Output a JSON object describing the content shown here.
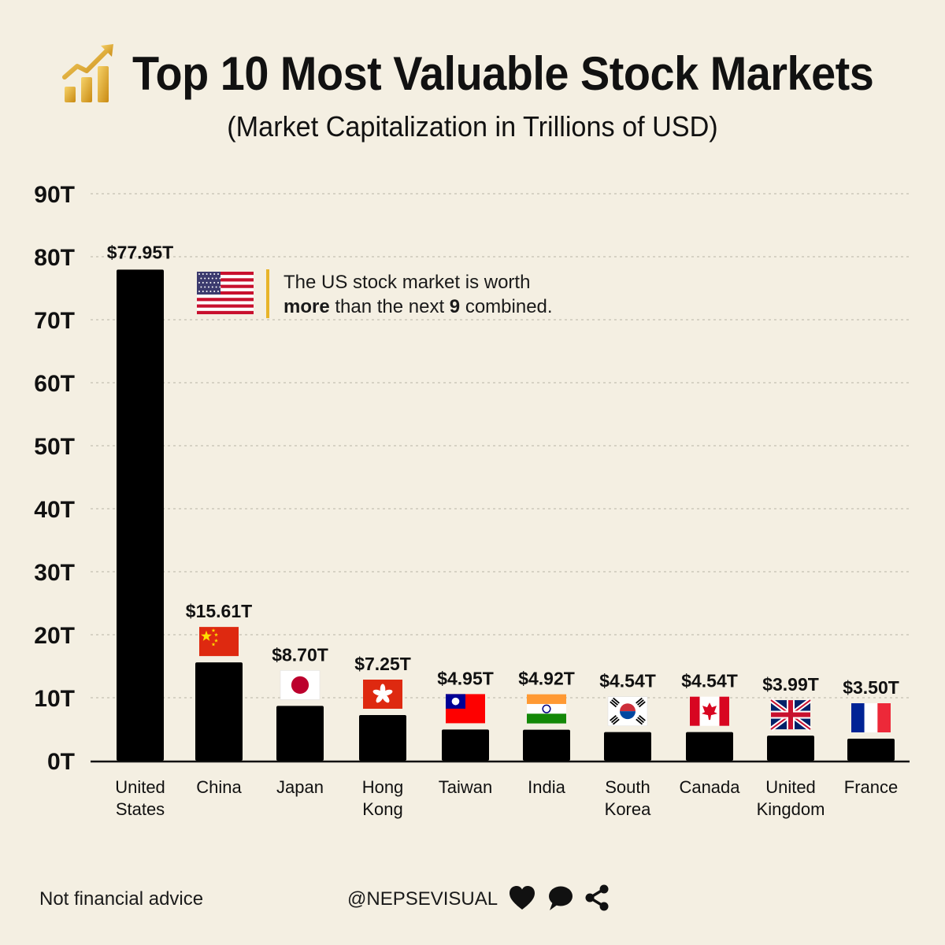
{
  "header": {
    "title": "Top 10 Most Valuable Stock Markets",
    "subtitle": "(Market Capitalization in Trillions of USD)",
    "icon": "rising-chart-icon"
  },
  "callout": {
    "line1": "The US stock market is worth",
    "line2_bold_1": "more",
    "line2_mid": " than the next ",
    "line2_bold_2": "9",
    "line2_end": " combined.",
    "flag": "us-flag",
    "accent_color": "#e8b42a"
  },
  "footer": {
    "disclaimer": "Not financial advice",
    "handle": "@NEPSEVISUAL",
    "icons": [
      "heart-icon",
      "comment-icon",
      "share-icon"
    ]
  },
  "chart_data": {
    "type": "bar",
    "y_ticks": [
      "0T",
      "10T",
      "20T",
      "30T",
      "40T",
      "50T",
      "60T",
      "70T",
      "80T",
      "90T"
    ],
    "ylim": [
      0,
      90
    ],
    "grid": true,
    "bar_color": "#000000",
    "categories": [
      {
        "label": [
          "United",
          "States"
        ],
        "value": 77.95,
        "data_label": "$77.95T",
        "flag": "us"
      },
      {
        "label": [
          "China"
        ],
        "value": 15.61,
        "data_label": "$15.61T",
        "flag": "cn"
      },
      {
        "label": [
          "Japan"
        ],
        "value": 8.7,
        "data_label": "$8.70T",
        "flag": "jp"
      },
      {
        "label": [
          "Hong",
          "Kong"
        ],
        "value": 7.25,
        "data_label": "$7.25T",
        "flag": "hk"
      },
      {
        "label": [
          "Taiwan"
        ],
        "value": 4.95,
        "data_label": "$4.95T",
        "flag": "tw"
      },
      {
        "label": [
          "India"
        ],
        "value": 4.92,
        "data_label": "$4.92T",
        "flag": "in"
      },
      {
        "label": [
          "South",
          "Korea"
        ],
        "value": 4.54,
        "data_label": "$4.54T",
        "flag": "kr"
      },
      {
        "label": [
          "Canada"
        ],
        "value": 4.54,
        "data_label": "$4.54T",
        "flag": "ca"
      },
      {
        "label": [
          "United",
          "Kingdom"
        ],
        "value": 3.99,
        "data_label": "$3.99T",
        "flag": "gb"
      },
      {
        "label": [
          "France"
        ],
        "value": 3.5,
        "data_label": "$3.50T",
        "flag": "fr"
      }
    ]
  }
}
